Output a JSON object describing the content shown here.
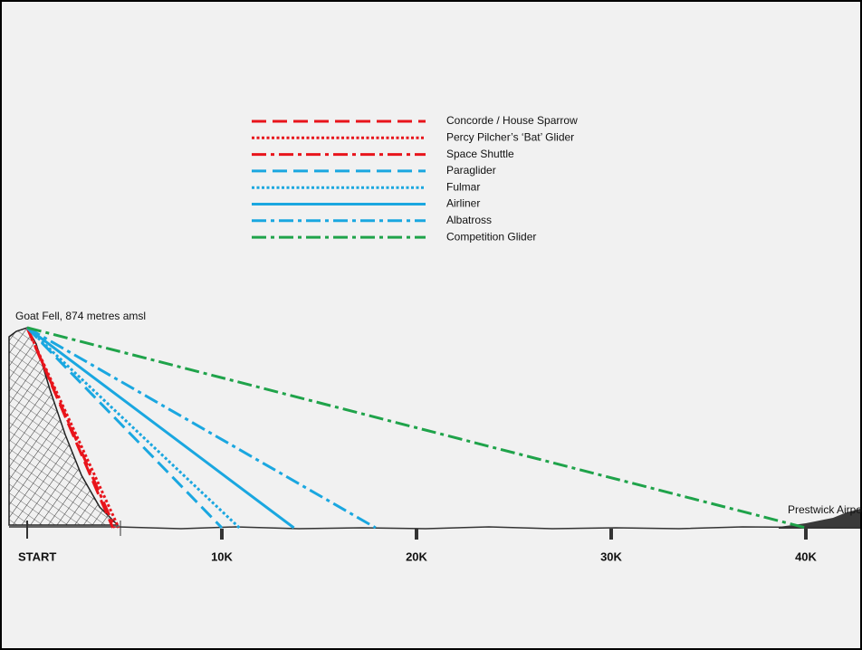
{
  "chart_data": {
    "type": "line",
    "annotations": [
      "Goat Fell, 874 metres amsl",
      "Prestwick Airport"
    ],
    "xlim": [
      0,
      40000
    ],
    "xticks": [
      {
        "value": 0,
        "label": "START"
      },
      {
        "value": 10000,
        "label": "10K"
      },
      {
        "value": 20000,
        "label": "20K"
      },
      {
        "value": 30000,
        "label": "30K"
      },
      {
        "value": 40000,
        "label": "40K"
      }
    ],
    "ylim": [
      0,
      874
    ],
    "legend": "top",
    "series": [
      {
        "name": "Concorde / House Sparrow",
        "color": "#e8141b",
        "dash": "dashed",
        "x": [
          0,
          4400
        ],
        "values": [
          874,
          0
        ]
      },
      {
        "name": "Percy Pilcher’s ‘Bat’ Glider",
        "color": "#e8141b",
        "dash": "dotted",
        "x": [
          0,
          4700
        ],
        "values": [
          874,
          0
        ]
      },
      {
        "name": "Space Shuttle",
        "color": "#e8141b",
        "dash": "dashdot",
        "x": [
          0,
          4500
        ],
        "values": [
          874,
          0
        ]
      },
      {
        "name": "Paraglider",
        "color": "#1aa7e0",
        "dash": "dashed",
        "x": [
          0,
          10000
        ],
        "values": [
          874,
          0
        ]
      },
      {
        "name": "Fulmar",
        "color": "#1aa7e0",
        "dash": "dotted",
        "x": [
          0,
          10900
        ],
        "values": [
          874,
          0
        ]
      },
      {
        "name": "Airliner",
        "color": "#1aa7e0",
        "dash": "solid",
        "x": [
          0,
          13700
        ],
        "values": [
          874,
          0
        ]
      },
      {
        "name": "Albatross",
        "color": "#1aa7e0",
        "dash": "dashdot",
        "x": [
          0,
          17900
        ],
        "values": [
          874,
          0
        ]
      },
      {
        "name": "Competition Glider",
        "color": "#1fa34a",
        "dash": "dashdot",
        "x": [
          0,
          40000
        ],
        "values": [
          874,
          0
        ]
      }
    ]
  }
}
